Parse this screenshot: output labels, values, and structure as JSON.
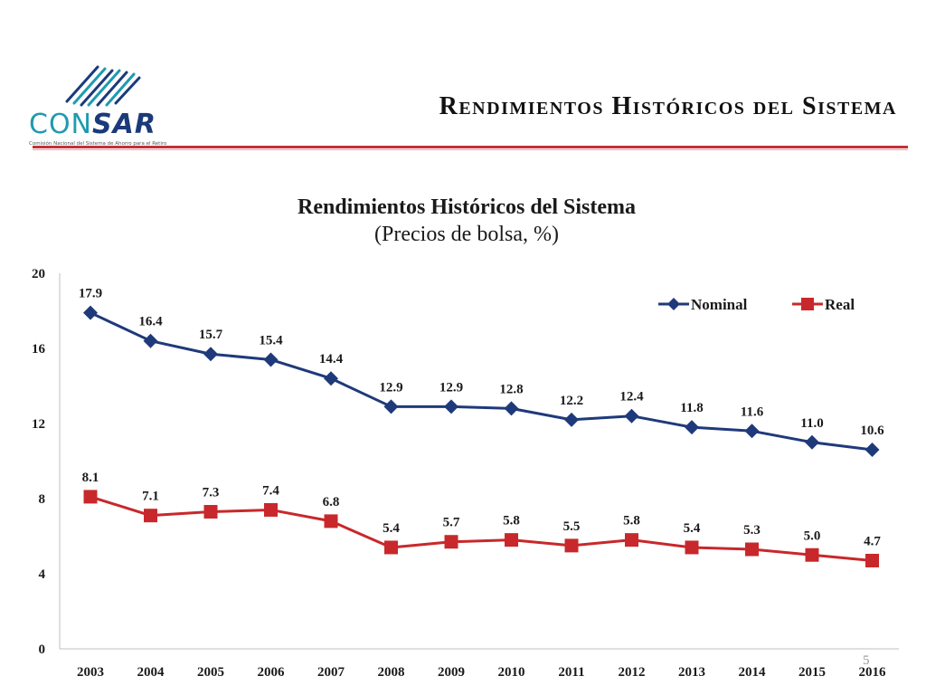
{
  "header": {
    "logo_text_light": "CON",
    "logo_text_bold": "SAR",
    "logo_subtitle": "Comisión Nacional del Sistema de Ahorro para el Retiro",
    "page_title": "Rendimientos Históricos del Sistema",
    "accent_color": "#c4303a"
  },
  "page_number": "5",
  "chart_data": {
    "type": "line",
    "title": "Rendimientos Históricos del Sistema",
    "subtitle": "(Precios de bolsa, %)",
    "xlabel": "",
    "ylabel": "",
    "categories": [
      "2003",
      "2004",
      "2005",
      "2006",
      "2007",
      "2008",
      "2009",
      "2010",
      "2011",
      "2012",
      "2013",
      "2014",
      "2015",
      "2016"
    ],
    "ylim": [
      0,
      20
    ],
    "yticks": [
      0,
      4,
      8,
      12,
      16,
      20
    ],
    "grid": false,
    "legend_position": "top-right",
    "series": [
      {
        "name": "Nominal",
        "color": "#1f3a7a",
        "marker": "diamond",
        "values": [
          17.9,
          16.4,
          15.7,
          15.4,
          14.4,
          12.9,
          12.9,
          12.8,
          12.2,
          12.4,
          11.8,
          11.6,
          11.0,
          10.6
        ],
        "labels": [
          "17.9",
          "16.4",
          "15.7",
          "15.4",
          "14.4",
          "12.9",
          "12.9",
          "12.8",
          "12.2",
          "12.4",
          "11.8",
          "11.6",
          "11.0",
          "10.6"
        ]
      },
      {
        "name": "Real",
        "color": "#c8282b",
        "marker": "square",
        "values": [
          8.1,
          7.1,
          7.3,
          7.4,
          6.8,
          5.4,
          5.7,
          5.8,
          5.5,
          5.8,
          5.4,
          5.3,
          5.0,
          4.7
        ],
        "labels": [
          "8.1",
          "7.1",
          "7.3",
          "7.4",
          "6.8",
          "5.4",
          "5.7",
          "5.8",
          "5.5",
          "5.8",
          "5.4",
          "5.3",
          "5.0",
          "4.7"
        ]
      }
    ]
  }
}
